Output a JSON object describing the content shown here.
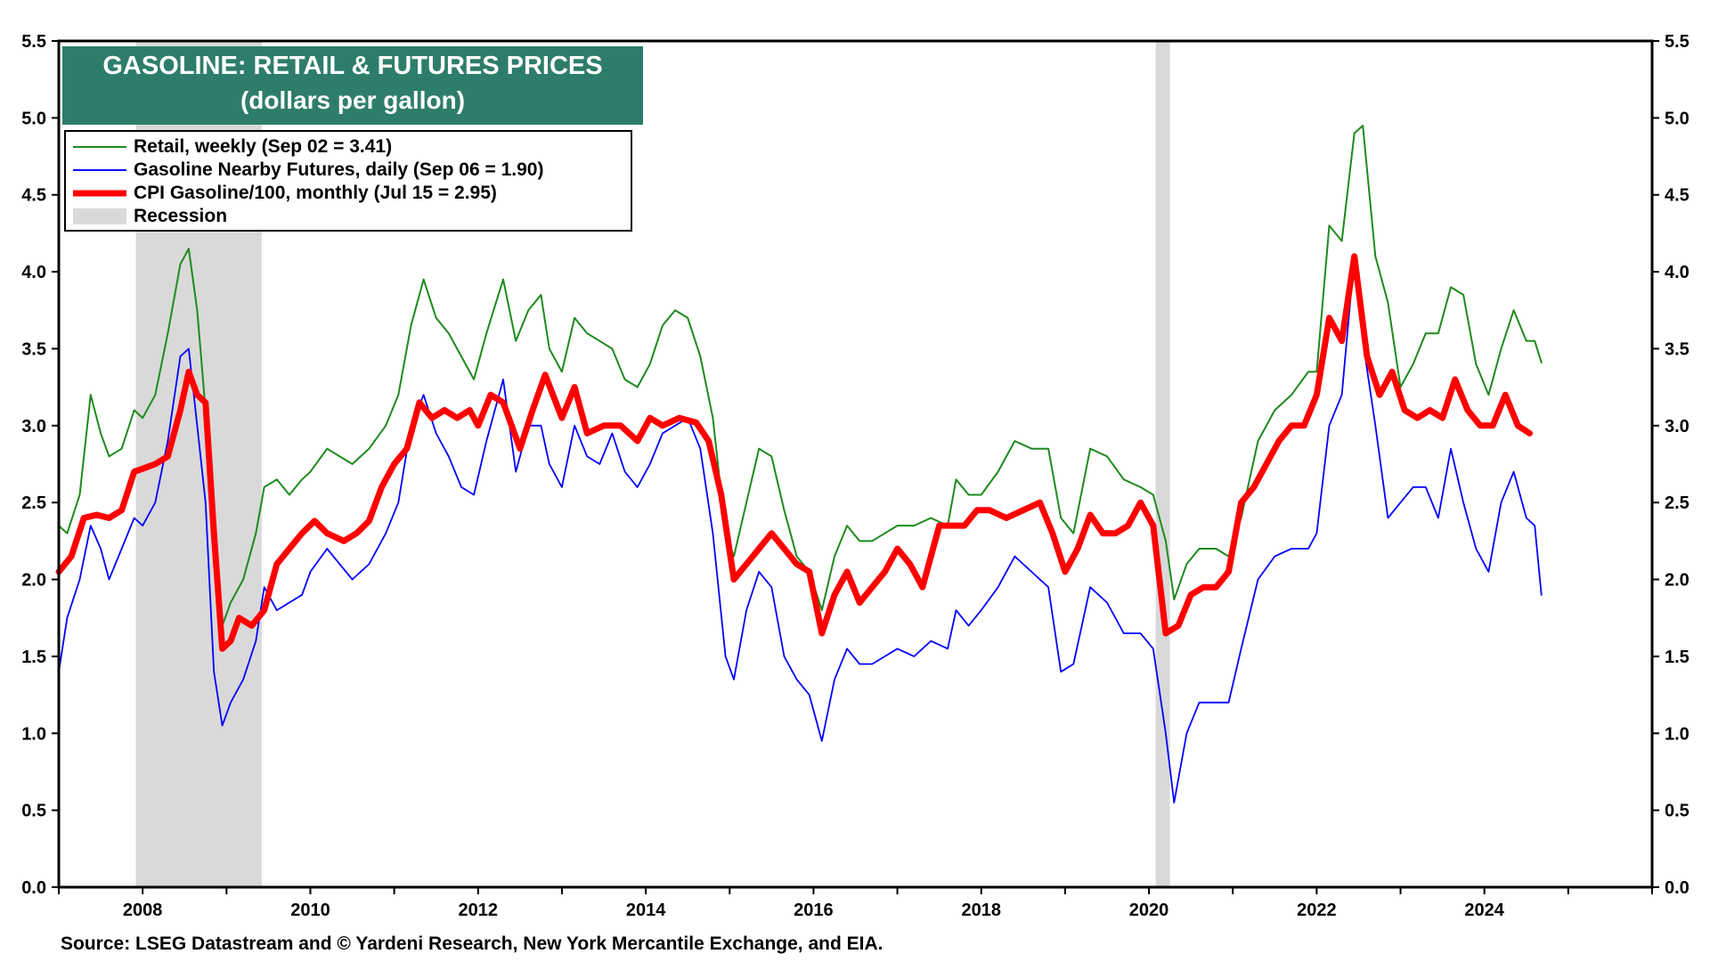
{
  "title_line1": "GASOLINE: RETAIL & FUTURES PRICES",
  "title_line2": "(dollars per gallon)",
  "source": "Source: LSEG Datastream and © Yardeni Research, New York Mercantile Exchange, and EIA.",
  "legend": [
    {
      "label": "Retail, weekly (Sep 02 = 3.41)",
      "color": "#1e8a1e",
      "style": "thin"
    },
    {
      "label": "Gasoline Nearby Futures, daily (Sep 06 = 1.90)",
      "color": "#0000ff",
      "style": "thin"
    },
    {
      "label": "CPI Gasoline/100, monthly (Jul 15 = 2.95)",
      "color": "#ff0000",
      "style": "thick"
    },
    {
      "label": "Recession",
      "color": "#d9d9d9",
      "style": "band"
    }
  ],
  "chart_data": {
    "type": "line",
    "title": "GASOLINE: RETAIL & FUTURES PRICES (dollars per gallon)",
    "xlabel": "",
    "ylabel": "dollars per gallon",
    "xlim": [
      2007.0,
      2026.0
    ],
    "ylim": [
      0.0,
      5.5
    ],
    "x_ticks": [
      2008,
      2010,
      2012,
      2014,
      2016,
      2018,
      2020,
      2022,
      2024
    ],
    "y_ticks": [
      0.0,
      0.5,
      1.0,
      1.5,
      2.0,
      2.5,
      3.0,
      3.5,
      4.0,
      4.5,
      5.0,
      5.5
    ],
    "y_tick_labels": [
      "0.0",
      "0.5",
      "1.0",
      "1.5",
      "2.0",
      "2.5",
      "3.0",
      "3.5",
      "4.0",
      "4.5",
      "5.0",
      "5.5"
    ],
    "x_tick_labels": [
      "2008",
      "2010",
      "2012",
      "2014",
      "2016",
      "2018",
      "2020",
      "2022",
      "2024"
    ],
    "recessions": [
      [
        2007.92,
        2009.42
      ],
      [
        2020.08,
        2020.25
      ]
    ],
    "series": [
      {
        "name": "Retail, weekly",
        "color": "#1e8a1e",
        "x": [
          2007.0,
          2007.1,
          2007.25,
          2007.38,
          2007.5,
          2007.6,
          2007.75,
          2007.9,
          2008.0,
          2008.15,
          2008.3,
          2008.45,
          2008.55,
          2008.65,
          2008.75,
          2008.85,
          2008.95,
          2009.05,
          2009.2,
          2009.35,
          2009.45,
          2009.6,
          2009.75,
          2009.9,
          2010.0,
          2010.2,
          2010.35,
          2010.5,
          2010.7,
          2010.9,
          2011.05,
          2011.2,
          2011.35,
          2011.5,
          2011.65,
          2011.8,
          2011.95,
          2012.1,
          2012.3,
          2012.45,
          2012.6,
          2012.75,
          2012.85,
          2013.0,
          2013.15,
          2013.3,
          2013.45,
          2013.6,
          2013.75,
          2013.9,
          2014.05,
          2014.2,
          2014.35,
          2014.5,
          2014.65,
          2014.8,
          2014.95,
          2015.05,
          2015.2,
          2015.35,
          2015.5,
          2015.65,
          2015.8,
          2015.95,
          2016.1,
          2016.25,
          2016.4,
          2016.55,
          2016.7,
          2016.85,
          2017.0,
          2017.2,
          2017.4,
          2017.6,
          2017.7,
          2017.85,
          2018.0,
          2018.2,
          2018.4,
          2018.6,
          2018.8,
          2018.95,
          2019.1,
          2019.3,
          2019.5,
          2019.7,
          2019.9,
          2020.05,
          2020.2,
          2020.3,
          2020.45,
          2020.6,
          2020.8,
          2020.95,
          2021.1,
          2021.3,
          2021.5,
          2021.7,
          2021.9,
          2022.0,
          2022.15,
          2022.3,
          2022.45,
          2022.55,
          2022.7,
          2022.85,
          2023.0,
          2023.15,
          2023.3,
          2023.45,
          2023.6,
          2023.75,
          2023.9,
          2024.05,
          2024.2,
          2024.35,
          2024.5,
          2024.6,
          2024.68
        ],
        "values": [
          2.35,
          2.3,
          2.55,
          3.2,
          2.95,
          2.8,
          2.85,
          3.1,
          3.05,
          3.2,
          3.6,
          4.05,
          4.15,
          3.75,
          3.1,
          2.2,
          1.7,
          1.85,
          2.0,
          2.3,
          2.6,
          2.65,
          2.55,
          2.65,
          2.7,
          2.85,
          2.8,
          2.75,
          2.85,
          3.0,
          3.2,
          3.65,
          3.95,
          3.7,
          3.6,
          3.45,
          3.3,
          3.6,
          3.95,
          3.55,
          3.75,
          3.85,
          3.5,
          3.35,
          3.7,
          3.6,
          3.55,
          3.5,
          3.3,
          3.25,
          3.4,
          3.65,
          3.75,
          3.7,
          3.45,
          3.05,
          2.3,
          2.15,
          2.5,
          2.85,
          2.8,
          2.45,
          2.15,
          2.05,
          1.8,
          2.15,
          2.35,
          2.25,
          2.25,
          2.3,
          2.35,
          2.35,
          2.4,
          2.35,
          2.65,
          2.55,
          2.55,
          2.7,
          2.9,
          2.85,
          2.85,
          2.4,
          2.3,
          2.85,
          2.8,
          2.65,
          2.6,
          2.55,
          2.25,
          1.87,
          2.1,
          2.2,
          2.2,
          2.15,
          2.4,
          2.9,
          3.1,
          3.2,
          3.35,
          3.35,
          4.3,
          4.2,
          4.9,
          4.95,
          4.1,
          3.8,
          3.25,
          3.4,
          3.6,
          3.6,
          3.9,
          3.85,
          3.4,
          3.2,
          3.5,
          3.75,
          3.55,
          3.55,
          3.41
        ]
      },
      {
        "name": "Gasoline Nearby Futures, daily",
        "color": "#0000ff",
        "x": [
          2007.0,
          2007.1,
          2007.25,
          2007.38,
          2007.5,
          2007.6,
          2007.75,
          2007.9,
          2008.0,
          2008.15,
          2008.3,
          2008.45,
          2008.55,
          2008.65,
          2008.75,
          2008.85,
          2008.95,
          2009.05,
          2009.2,
          2009.35,
          2009.45,
          2009.6,
          2009.75,
          2009.9,
          2010.0,
          2010.2,
          2010.35,
          2010.5,
          2010.7,
          2010.9,
          2011.05,
          2011.2,
          2011.35,
          2011.5,
          2011.65,
          2011.8,
          2011.95,
          2012.1,
          2012.3,
          2012.45,
          2012.6,
          2012.75,
          2012.85,
          2013.0,
          2013.15,
          2013.3,
          2013.45,
          2013.6,
          2013.75,
          2013.9,
          2014.05,
          2014.2,
          2014.35,
          2014.5,
          2014.65,
          2014.8,
          2014.95,
          2015.05,
          2015.2,
          2015.35,
          2015.5,
          2015.65,
          2015.8,
          2015.95,
          2016.1,
          2016.25,
          2016.4,
          2016.55,
          2016.7,
          2016.85,
          2017.0,
          2017.2,
          2017.4,
          2017.6,
          2017.7,
          2017.85,
          2018.0,
          2018.2,
          2018.4,
          2018.6,
          2018.8,
          2018.95,
          2019.1,
          2019.3,
          2019.5,
          2019.7,
          2019.9,
          2020.05,
          2020.2,
          2020.3,
          2020.45,
          2020.6,
          2020.8,
          2020.95,
          2021.1,
          2021.3,
          2021.5,
          2021.7,
          2021.9,
          2022.0,
          2022.15,
          2022.3,
          2022.45,
          2022.55,
          2022.7,
          2022.85,
          2023.0,
          2023.15,
          2023.3,
          2023.45,
          2023.6,
          2023.75,
          2023.9,
          2024.05,
          2024.2,
          2024.35,
          2024.5,
          2024.6,
          2024.68
        ],
        "values": [
          1.4,
          1.75,
          2.0,
          2.35,
          2.2,
          2.0,
          2.2,
          2.4,
          2.35,
          2.5,
          2.9,
          3.45,
          3.5,
          3.0,
          2.5,
          1.4,
          1.05,
          1.2,
          1.35,
          1.6,
          1.95,
          1.8,
          1.85,
          1.9,
          2.05,
          2.2,
          2.1,
          2.0,
          2.1,
          2.3,
          2.5,
          3.0,
          3.2,
          2.95,
          2.8,
          2.6,
          2.55,
          2.9,
          3.3,
          2.7,
          3.0,
          3.0,
          2.75,
          2.6,
          3.0,
          2.8,
          2.75,
          2.95,
          2.7,
          2.6,
          2.75,
          2.95,
          3.0,
          3.05,
          2.85,
          2.3,
          1.5,
          1.35,
          1.8,
          2.05,
          1.95,
          1.5,
          1.35,
          1.25,
          0.95,
          1.35,
          1.55,
          1.45,
          1.45,
          1.5,
          1.55,
          1.5,
          1.6,
          1.55,
          1.8,
          1.7,
          1.8,
          1.95,
          2.15,
          2.05,
          1.95,
          1.4,
          1.45,
          1.95,
          1.85,
          1.65,
          1.65,
          1.55,
          1.0,
          0.55,
          1.0,
          1.2,
          1.2,
          1.2,
          1.55,
          2.0,
          2.15,
          2.2,
          2.2,
          2.3,
          3.0,
          3.2,
          4.1,
          3.55,
          3.0,
          2.4,
          2.5,
          2.6,
          2.6,
          2.4,
          2.85,
          2.5,
          2.2,
          2.05,
          2.5,
          2.7,
          2.4,
          2.35,
          1.9
        ]
      },
      {
        "name": "CPI Gasoline/100, monthly",
        "color": "#ff0000",
        "x": [
          2007.0,
          2007.15,
          2007.3,
          2007.45,
          2007.6,
          2007.75,
          2007.9,
          2008.0,
          2008.15,
          2008.3,
          2008.45,
          2008.55,
          2008.65,
          2008.75,
          2008.85,
          2008.95,
          2009.05,
          2009.15,
          2009.3,
          2009.45,
          2009.6,
          2009.75,
          2009.9,
          2010.05,
          2010.2,
          2010.4,
          2010.55,
          2010.7,
          2010.85,
          2011.0,
          2011.15,
          2011.3,
          2011.45,
          2011.6,
          2011.75,
          2011.9,
          2012.0,
          2012.15,
          2012.3,
          2012.5,
          2012.65,
          2012.8,
          2013.0,
          2013.15,
          2013.3,
          2013.5,
          2013.7,
          2013.9,
          2014.05,
          2014.2,
          2014.4,
          2014.6,
          2014.75,
          2014.9,
          2015.05,
          2015.2,
          2015.35,
          2015.5,
          2015.65,
          2015.8,
          2015.95,
          2016.1,
          2016.25,
          2016.4,
          2016.55,
          2016.7,
          2016.85,
          2017.0,
          2017.15,
          2017.3,
          2017.5,
          2017.65,
          2017.8,
          2017.95,
          2018.1,
          2018.3,
          2018.5,
          2018.7,
          2018.85,
          2019.0,
          2019.15,
          2019.3,
          2019.45,
          2019.6,
          2019.75,
          2019.9,
          2020.05,
          2020.2,
          2020.35,
          2020.5,
          2020.65,
          2020.8,
          2020.95,
          2021.1,
          2021.25,
          2021.4,
          2021.55,
          2021.7,
          2021.85,
          2022.0,
          2022.15,
          2022.3,
          2022.45,
          2022.6,
          2022.75,
          2022.9,
          2023.05,
          2023.2,
          2023.35,
          2023.5,
          2023.65,
          2023.8,
          2023.95,
          2024.1,
          2024.25,
          2024.4,
          2024.54
        ],
        "values": [
          2.05,
          2.15,
          2.4,
          2.42,
          2.4,
          2.45,
          2.7,
          2.72,
          2.75,
          2.8,
          3.1,
          3.35,
          3.2,
          3.15,
          2.3,
          1.55,
          1.6,
          1.75,
          1.7,
          1.8,
          2.1,
          2.2,
          2.3,
          2.38,
          2.3,
          2.25,
          2.3,
          2.38,
          2.6,
          2.75,
          2.85,
          3.15,
          3.05,
          3.1,
          3.05,
          3.1,
          3.0,
          3.2,
          3.15,
          2.85,
          3.1,
          3.33,
          3.05,
          3.25,
          2.95,
          3.0,
          3.0,
          2.9,
          3.05,
          3.0,
          3.05,
          3.02,
          2.9,
          2.55,
          2.0,
          2.1,
          2.2,
          2.3,
          2.2,
          2.1,
          2.05,
          1.65,
          1.9,
          2.05,
          1.85,
          1.95,
          2.05,
          2.2,
          2.1,
          1.95,
          2.35,
          2.35,
          2.35,
          2.45,
          2.45,
          2.4,
          2.45,
          2.5,
          2.3,
          2.05,
          2.2,
          2.42,
          2.3,
          2.3,
          2.35,
          2.5,
          2.35,
          1.65,
          1.7,
          1.9,
          1.95,
          1.95,
          2.05,
          2.5,
          2.6,
          2.75,
          2.9,
          3.0,
          3.0,
          3.2,
          3.7,
          3.55,
          4.1,
          3.45,
          3.2,
          3.35,
          3.1,
          3.05,
          3.1,
          3.05,
          3.3,
          3.1,
          3.0,
          3.0,
          3.2,
          3.0,
          2.95
        ]
      }
    ]
  }
}
